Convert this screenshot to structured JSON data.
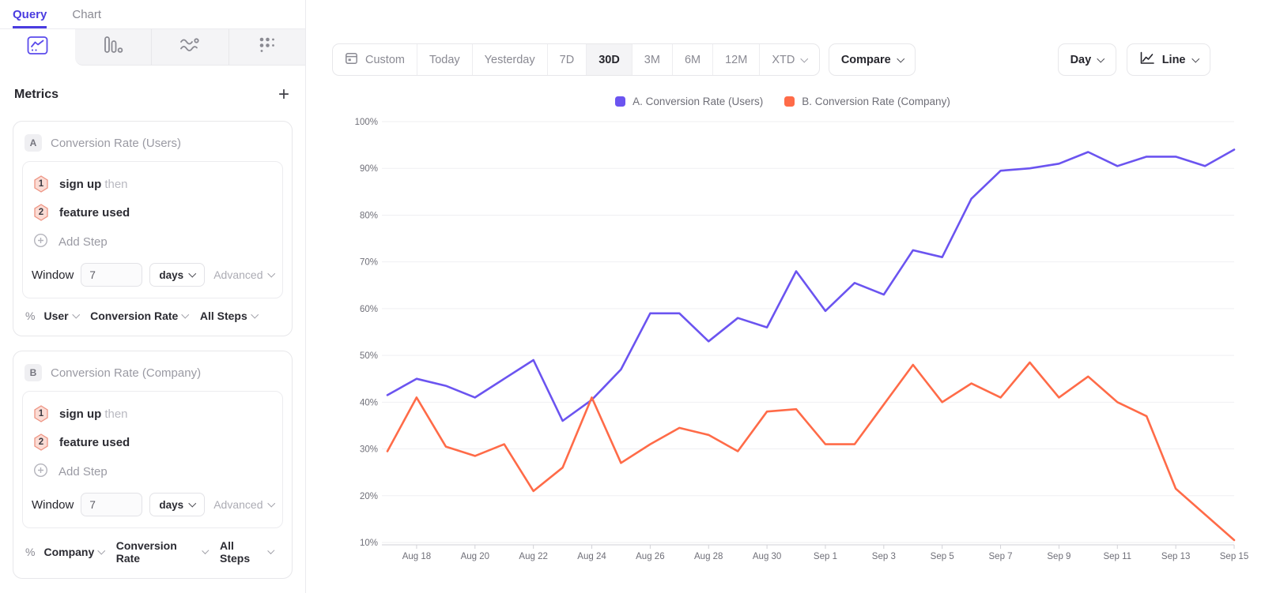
{
  "ui": {
    "accent_color": "#4a3ce0"
  },
  "left_panel": {
    "nav_tabs": [
      {
        "label": "Query"
      },
      {
        "label": "Chart"
      }
    ],
    "chart_type_tabs": [
      "line-chart",
      "bar-chart",
      "flow-chart",
      "dot-grid"
    ],
    "metrics": {
      "title": "Metrics",
      "add_button": "+",
      "cards": [
        {
          "badge": "A",
          "title": "Conversion Rate (Users)",
          "steps": [
            {
              "num": "1",
              "event": "sign up",
              "connector": "then"
            },
            {
              "num": "2",
              "event": "feature used",
              "connector": ""
            }
          ],
          "add_step_label": "Add Step",
          "window_label": "Window",
          "window_value": "7",
          "window_unit": "days",
          "advanced_label": "Advanced",
          "measure": {
            "pct": "%",
            "subject": "User",
            "metric": "Conversion Rate",
            "scope": "All Steps"
          }
        },
        {
          "badge": "B",
          "title": "Conversion Rate (Company)",
          "steps": [
            {
              "num": "1",
              "event": "sign up",
              "connector": "then"
            },
            {
              "num": "2",
              "event": "feature used",
              "connector": ""
            }
          ],
          "add_step_label": "Add Step",
          "window_label": "Window",
          "window_value": "7",
          "window_unit": "days",
          "advanced_label": "Advanced",
          "measure": {
            "pct": "%",
            "subject": "Company",
            "metric": "Conversion Rate",
            "scope": "All Steps"
          }
        }
      ]
    }
  },
  "toolbar": {
    "date_ranges": [
      "Custom",
      "Today",
      "Yesterday",
      "7D",
      "30D",
      "3M",
      "6M",
      "12M",
      "XTD"
    ],
    "active_range": "30D",
    "compare_label": "Compare",
    "granularity_label": "Day",
    "chart_style_label": "Line"
  },
  "legend": {
    "items": [
      {
        "label": "A. Conversion Rate (Users)"
      },
      {
        "label": "B. Conversion Rate (Company)"
      }
    ]
  },
  "chart_data": {
    "type": "line",
    "title": "",
    "xlabel": "",
    "ylabel": "",
    "grid": true,
    "legend_position": "top",
    "ylim": [
      10,
      100
    ],
    "yticks": [
      "100%",
      "90%",
      "80%",
      "70%",
      "60%",
      "50%",
      "40%",
      "30%",
      "20%",
      "10%"
    ],
    "x": [
      "Aug 17",
      "Aug 18",
      "Aug 19",
      "Aug 20",
      "Aug 21",
      "Aug 22",
      "Aug 23",
      "Aug 24",
      "Aug 25",
      "Aug 26",
      "Aug 27",
      "Aug 28",
      "Aug 29",
      "Aug 30",
      "Aug 31",
      "Sep 1",
      "Sep 2",
      "Sep 3",
      "Sep 4",
      "Sep 5",
      "Sep 6",
      "Sep 7",
      "Sep 8",
      "Sep 9",
      "Sep 10",
      "Sep 11",
      "Sep 12",
      "Sep 13",
      "Sep 14",
      "Sep 15"
    ],
    "x_tick_labels": [
      "Aug 18",
      "Aug 20",
      "Aug 22",
      "Aug 24",
      "Aug 26",
      "Aug 28",
      "Aug 30",
      "Sep 1",
      "Sep 3",
      "Sep 5",
      "Sep 7",
      "Sep 9",
      "Sep 11",
      "Sep 13",
      "Sep 15"
    ],
    "series": [
      {
        "name": "A. Conversion Rate (Users)",
        "color": "#6b54f0",
        "values": [
          41.5,
          45,
          43.5,
          41,
          45,
          49,
          36,
          40.5,
          47,
          59,
          59,
          53,
          58,
          56,
          68,
          59.5,
          65.5,
          63,
          72.5,
          71,
          83.5,
          89.5,
          90,
          91,
          93.5,
          90.5,
          92.5,
          92.5,
          90.5,
          94
        ]
      },
      {
        "name": "B. Conversion Rate (Company)",
        "color": "#ff6b48",
        "values": [
          29.5,
          41,
          30.5,
          28.5,
          31,
          21,
          26,
          41,
          27,
          31,
          34.5,
          33,
          29.5,
          38,
          38.5,
          31,
          31,
          39.5,
          48,
          40,
          44,
          41,
          48.5,
          41,
          45.5,
          40,
          37,
          21.5,
          16,
          10.5
        ]
      }
    ]
  }
}
